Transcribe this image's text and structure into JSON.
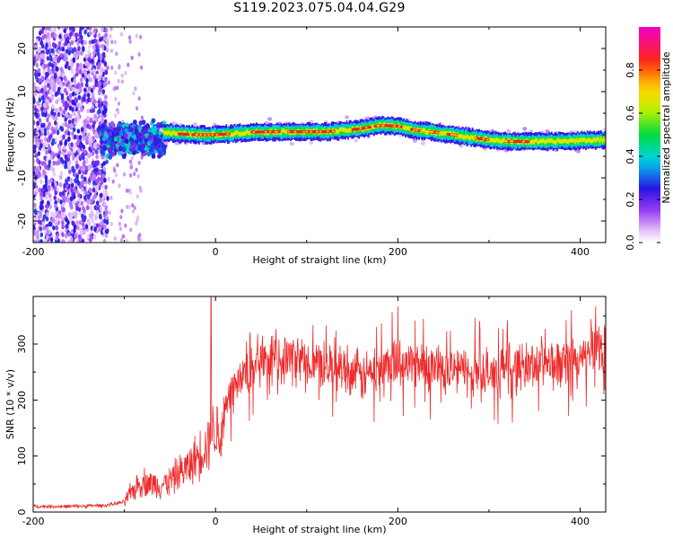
{
  "title": "S119.2023.075.04.04.G29",
  "colors": {
    "snr_line": "#ee2a2a",
    "ridge": "#ee2222",
    "scatter": "#7a1ee0"
  },
  "chart_data": [
    {
      "type": "heatmap",
      "title": "S119.2023.075.04.04.G29",
      "xlabel": "Height of straight line (km)",
      "ylabel": "Frequency (Hz)",
      "xlim": [
        -200,
        428
      ],
      "ylim": [
        -25,
        25
      ],
      "xticks": [
        -200,
        0,
        200,
        400
      ],
      "xtick_labels": [
        "-200",
        "0",
        "200",
        "400"
      ],
      "yticks": [
        -20,
        -10,
        0,
        10,
        20
      ],
      "ytick_labels": [
        "-20",
        "-10",
        "0",
        "10",
        "20"
      ],
      "colorbar": {
        "label": "Normalized spectral amplitude",
        "range": [
          0,
          1
        ],
        "ticks": [
          0.0,
          0.2,
          0.4,
          0.6,
          0.8
        ],
        "tick_labels": [
          "0.0",
          "0.2",
          "0.4",
          "0.6",
          "0.8"
        ],
        "colormap": "rainbow (white-purple-blue-cyan-green-yellow-red-magenta)"
      },
      "ridge": {
        "x": [
          -55,
          -40,
          -20,
          0,
          20,
          40,
          60,
          80,
          100,
          120,
          140,
          160,
          180,
          200,
          220,
          240,
          260,
          280,
          300,
          320,
          340,
          360,
          380,
          400,
          428
        ],
        "y": [
          0.5,
          0.2,
          0.0,
          0.0,
          0.3,
          0.6,
          0.7,
          0.7,
          0.7,
          0.7,
          1.0,
          1.4,
          2.2,
          2.0,
          1.0,
          0.6,
          0.0,
          -0.6,
          -1.2,
          -1.5,
          -1.6,
          -1.6,
          -1.5,
          -1.3,
          -1.2
        ]
      }
    },
    {
      "type": "line",
      "xlabel": "Height of straight line (km)",
      "ylabel": "SNR (10 * v/v)",
      "xlim": [
        -200,
        428
      ],
      "ylim": [
        0,
        385
      ],
      "xticks": [
        -200,
        0,
        200,
        400
      ],
      "xtick_labels": [
        "-200",
        "0",
        "200",
        "400"
      ],
      "yticks": [
        0,
        100,
        200,
        300
      ],
      "ytick_labels": [
        "0",
        "100",
        "200",
        "300"
      ],
      "series": [
        {
          "x": [
            -200,
            -160,
            -120,
            -100,
            -90,
            -80,
            -70,
            -60,
            -50,
            -40,
            -30,
            -20,
            -10,
            0,
            5,
            10,
            20,
            30,
            40,
            60,
            80,
            100,
            120,
            140,
            150,
            160,
            170,
            180,
            200,
            220,
            240,
            260,
            280,
            300,
            320,
            340,
            360,
            380,
            400,
            410,
            420,
            428
          ],
          "y": [
            10,
            10,
            12,
            18,
            40,
            55,
            50,
            48,
            55,
            70,
            80,
            100,
            120,
            150,
            130,
            180,
            220,
            240,
            260,
            270,
            275,
            270,
            265,
            260,
            250,
            240,
            250,
            260,
            270,
            265,
            260,
            255,
            250,
            245,
            255,
            260,
            265,
            260,
            270,
            285,
            295,
            300
          ]
        }
      ]
    }
  ]
}
